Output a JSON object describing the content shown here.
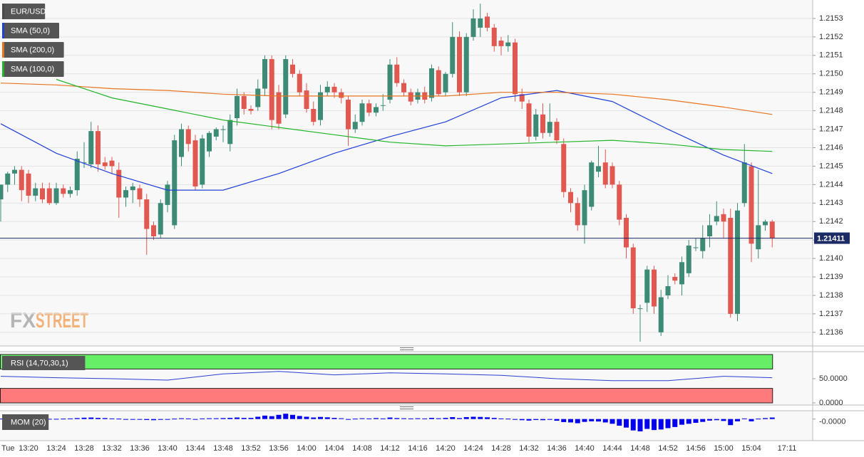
{
  "chart_data": [
    {
      "type": "candlestick",
      "title": "EUR/USD",
      "x": [
        "Tue",
        null,
        null,
        null,
        "13:20",
        null,
        null,
        null,
        "13:24",
        null,
        null,
        null,
        "13:28",
        null,
        null,
        null,
        "13:32",
        null,
        null,
        null,
        "13:36",
        null,
        null,
        null,
        "13:40",
        null,
        null,
        null,
        "13:44",
        null,
        null,
        null,
        "13:48",
        null,
        null,
        null,
        "13:52",
        null,
        null,
        null,
        "13:56",
        null,
        null,
        null,
        "14:00",
        null,
        null,
        null,
        "14:04",
        null,
        null,
        null,
        "14:08",
        null,
        null,
        null,
        "14:12",
        null,
        null,
        null,
        "14:16",
        null,
        null,
        null,
        "14:20",
        null,
        null,
        null,
        "14:24",
        null,
        null,
        null,
        "14:28",
        null,
        null,
        null,
        "14:32",
        null,
        null,
        null,
        "14:36",
        null,
        null,
        null,
        "14:40",
        null,
        null,
        null,
        "14:44",
        null,
        null,
        null,
        "14:48",
        null,
        null,
        null,
        "14:52",
        null,
        null,
        null,
        "14:56",
        null,
        null,
        null,
        "15:00",
        null,
        null,
        null,
        "15:04",
        null,
        null,
        null
      ],
      "open": [
        1.21432,
        1.2144,
        1.21446,
        1.21448,
        1.21446,
        1.21434,
        1.21438,
        1.21438,
        1.2143,
        1.21438,
        1.21435,
        1.21437,
        1.21452,
        1.21451,
        1.21469,
        1.21452,
        1.21453,
        1.21448,
        1.21433,
        1.21437,
        1.21438,
        1.21432,
        1.21418,
        1.21413,
        1.21429,
        1.21418,
        1.21455,
        1.2147,
        1.21464,
        1.2144,
        1.21458,
        1.21466,
        1.2147,
        1.21462,
        1.21476,
        1.21488,
        1.21481,
        1.21482,
        1.21492,
        1.21508,
        1.2149,
        1.21478,
        1.21505,
        1.215,
        1.21491,
        1.21481,
        1.21475,
        1.2149,
        1.21493,
        1.2149,
        1.21486,
        1.2147,
        1.21474,
        1.21484,
        1.21479,
        1.21483,
        1.21486,
        1.21505,
        1.21495,
        1.2149,
        1.21486,
        1.2149,
        1.21487,
        1.21502,
        1.2149,
        1.215,
        1.2152,
        1.2149,
        1.2152,
        1.21525,
        1.21531,
        1.21525,
        1.21518,
        1.21515,
        1.21517,
        1.21489,
        1.21484,
        1.21466,
        1.21478,
        1.21468,
        1.21474,
        1.21462,
        1.21436,
        1.2143,
        1.21418,
        1.21428,
        1.21447,
        1.21452,
        1.2145,
        1.2144,
        1.21422,
        1.21406,
        1.21373,
        1.21376,
        1.21394,
        1.2136,
        1.2138,
        1.2139,
        1.21386,
        1.21392,
        1.21406,
        1.21404,
        1.21412,
        1.2142,
        1.21424,
        1.21422,
        1.2137,
        1.2143,
        1.2145,
        1.21405,
        1.21418,
        1.2142
      ],
      "high": [
        1.2144,
        1.21447,
        1.2145,
        1.2145,
        1.21448,
        1.21441,
        1.21441,
        1.21441,
        1.21441,
        1.2144,
        1.21439,
        1.21458,
        1.21463,
        1.21474,
        1.21472,
        1.21455,
        1.21455,
        1.21452,
        1.21439,
        1.21441,
        1.2144,
        1.21435,
        1.2142,
        1.21432,
        1.21442,
        1.21467,
        1.21473,
        1.21472,
        1.21467,
        1.21467,
        1.21469,
        1.21471,
        1.21472,
        1.21478,
        1.21492,
        1.2149,
        1.21483,
        1.21497,
        1.2151,
        1.2151,
        1.21494,
        1.2151,
        1.21508,
        1.21502,
        1.21495,
        1.21485,
        1.21494,
        1.21496,
        1.21495,
        1.21492,
        1.21488,
        1.21478,
        1.21486,
        1.21486,
        1.21484,
        1.21489,
        1.21508,
        1.21509,
        1.21497,
        1.21492,
        1.21492,
        1.21493,
        1.21505,
        1.21504,
        1.21501,
        1.21528,
        1.21523,
        1.21522,
        1.21535,
        1.21538,
        1.21533,
        1.21527,
        1.2152,
        1.21521,
        1.21519,
        1.21492,
        1.21486,
        1.21481,
        1.21484,
        1.21484,
        1.21476,
        1.21465,
        1.21438,
        1.21433,
        1.2144,
        1.21453,
        1.21461,
        1.21459,
        1.21452,
        1.21442,
        1.21424,
        1.21408,
        1.21375,
        1.21396,
        1.21396,
        1.21383,
        1.21391,
        1.21392,
        1.21401,
        1.2141,
        1.21411,
        1.21418,
        1.21424,
        1.21431,
        1.21427,
        1.21427,
        1.2143,
        1.21462,
        1.21452,
        1.21448,
        1.21421,
        1.21421
      ],
      "low": [
        1.2142,
        1.21436,
        1.2144,
        1.21431,
        1.2143,
        1.21431,
        1.2143,
        1.21429,
        1.21429,
        1.21433,
        1.21433,
        1.21434,
        1.21449,
        1.21449,
        1.21447,
        1.21448,
        1.21446,
        1.21422,
        1.21428,
        1.2143,
        1.21428,
        1.21402,
        1.2141,
        1.21411,
        1.21425,
        1.21416,
        1.2145,
        1.21458,
        1.21437,
        1.21438,
        1.21455,
        1.21464,
        1.21463,
        1.21458,
        1.21472,
        1.21478,
        1.21478,
        1.2148,
        1.21488,
        1.2147,
        1.2147,
        1.21476,
        1.21498,
        1.21488,
        1.21479,
        1.21472,
        1.21472,
        1.21488,
        1.21487,
        1.21484,
        1.21461,
        1.21468,
        1.21472,
        1.21477,
        1.21477,
        1.2148,
        1.21484,
        1.21493,
        1.21488,
        1.21483,
        1.21484,
        1.21484,
        1.21485,
        1.21488,
        1.21488,
        1.21498,
        1.21488,
        1.21488,
        1.21518,
        1.2152,
        1.21523,
        1.21512,
        1.2151,
        1.21512,
        1.21485,
        1.21481,
        1.21463,
        1.21464,
        1.21465,
        1.21466,
        1.21462,
        1.21433,
        1.21425,
        1.21415,
        1.21408,
        1.21426,
        1.21444,
        1.21438,
        1.21438,
        1.21418,
        1.214,
        1.2137,
        1.21355,
        1.21371,
        1.2137,
        1.21358,
        1.21378,
        1.21386,
        1.2138,
        1.2139,
        1.21404,
        1.214,
        1.21406,
        1.21418,
        1.21411,
        1.21368,
        1.21366,
        1.21428,
        1.21398,
        1.214,
        1.21415,
        1.21406
      ],
      "close": [
        1.2144,
        1.21446,
        1.21448,
        1.21437,
        1.21434,
        1.21438,
        1.21432,
        1.2143,
        1.21438,
        1.21435,
        1.21437,
        1.21454,
        1.21452,
        1.21469,
        1.21451,
        1.2145,
        1.2145,
        1.21433,
        1.21437,
        1.21439,
        1.21432,
        1.21416,
        1.21412,
        1.2143,
        1.2144,
        1.21464,
        1.2147,
        1.21462,
        1.21439,
        1.21465,
        1.21468,
        1.2147,
        1.2147,
        1.21475,
        1.21488,
        1.21481,
        1.2148,
        1.21492,
        1.21508,
        1.21475,
        1.21473,
        1.21508,
        1.215,
        1.2149,
        1.21481,
        1.21474,
        1.2149,
        1.21493,
        1.2149,
        1.21487,
        1.2147,
        1.21474,
        1.21484,
        1.21479,
        1.21482,
        1.21483,
        1.21505,
        1.21495,
        1.2149,
        1.21485,
        1.2149,
        1.21486,
        1.21503,
        1.21489,
        1.215,
        1.2152,
        1.2149,
        1.2152,
        1.2153,
        1.2153,
        1.21525,
        1.21515,
        1.21515,
        1.21517,
        1.21489,
        1.21485,
        1.21466,
        1.21478,
        1.21468,
        1.21474,
        1.21464,
        1.21436,
        1.2143,
        1.21418,
        1.21437,
        1.21452,
        1.2145,
        1.2144,
        1.2144,
        1.21421,
        1.21406,
        1.21373,
        1.21373,
        1.21394,
        1.21374,
        1.21379,
        1.21385,
        1.21388,
        1.21398,
        1.21407,
        1.21406,
        1.21411,
        1.21418,
        1.21423,
        1.2142,
        1.2137,
        1.21426,
        1.21452,
        1.21408,
        1.21418,
        1.2142,
        1.21411
      ],
      "up_color": "#3d8b75",
      "down_color": "#e0584f",
      "series": [
        {
          "name": "SMA (50,0)",
          "color": "#2040d8",
          "x": [
            0,
            8,
            16,
            24,
            32,
            40,
            48,
            56,
            64,
            72,
            80,
            88,
            96,
            104,
            111
          ],
          "values": [
            1.21473,
            1.21457,
            1.21446,
            1.21437,
            1.21437,
            1.21446,
            1.21457,
            1.21466,
            1.21474,
            1.21487,
            1.21491,
            1.21485,
            1.2147,
            1.21456,
            1.21446
          ]
        },
        {
          "name": "SMA (200,0)",
          "color": "#e8741e",
          "x": [
            0,
            8,
            16,
            24,
            32,
            40,
            48,
            56,
            64,
            72,
            80,
            88,
            96,
            104,
            111
          ],
          "values": [
            1.21495,
            1.21494,
            1.21492,
            1.21491,
            1.21489,
            1.21488,
            1.21488,
            1.21488,
            1.21488,
            1.2149,
            1.2149,
            1.21489,
            1.21486,
            1.21482,
            1.21478
          ]
        },
        {
          "name": "SMA (100,0)",
          "color": "#22b52a",
          "x": [
            8,
            16,
            24,
            32,
            40,
            48,
            56,
            64,
            72,
            80,
            88,
            96,
            104,
            111
          ],
          "values": [
            1.21497,
            1.21487,
            1.21481,
            1.21475,
            1.21471,
            1.21467,
            1.21463,
            1.21461,
            1.21462,
            1.21463,
            1.21464,
            1.21462,
            1.21459,
            1.21458
          ]
        }
      ],
      "current_price": {
        "value": 1.21411,
        "label": "1.21411"
      },
      "cursor_time": "17:11",
      "ylim": [
        1.21353,
        1.2154
      ],
      "yticks": [
        1.2136,
        1.2137,
        1.2138,
        1.2139,
        {
          "value": 1.214,
          "label": "1.2140"
        },
        1.2141,
        1.2142,
        1.2143,
        1.2144,
        1.2145,
        1.2146,
        1.2147,
        1.2148,
        1.2149,
        {
          "value": 1.215,
          "label": "1.2150"
        },
        1.2151,
        1.2152,
        1.2153
      ],
      "grid": true
    },
    {
      "type": "line",
      "title": "RSI (14,70,30,1)",
      "series": [
        {
          "color": "#2a3fd0",
          "x": [
            0,
            8,
            16,
            24,
            32,
            40,
            48,
            56,
            64,
            72,
            80,
            88,
            96,
            104,
            111
          ],
          "values": [
            55,
            52,
            50,
            47,
            60,
            65,
            58,
            62,
            60,
            57,
            50,
            46,
            46,
            55,
            52
          ]
        }
      ],
      "bands": [
        {
          "range": [
            70,
            100
          ],
          "color": "#66ee66"
        },
        {
          "range": [
            0,
            30
          ],
          "color": "#ff7b7b"
        }
      ],
      "ylim": [
        0,
        100
      ],
      "yticks": [
        {
          "value": 50,
          "label": "50.0000"
        },
        {
          "value": 0,
          "label": "0.0000"
        }
      ]
    },
    {
      "type": "bar",
      "title": "MOM (20)",
      "color": "#0000ee",
      "values": [
        2e-05,
        2e-05,
        1e-05,
        2e-05,
        2e-05,
        1e-05,
        2e-05,
        1e-05,
        1e-05,
        2e-05,
        3e-05,
        5e-05,
        7e-05,
        8e-05,
        6e-05,
        5e-05,
        3e-05,
        2e-05,
        -1e-05,
        -2e-05,
        -3e-05,
        -5e-05,
        -6e-05,
        -4e-05,
        -2e-05,
        2e-05,
        4e-05,
        3e-05,
        -2e-05,
        3e-05,
        4e-05,
        4e-05,
        5e-05,
        6e-05,
        8e-05,
        6e-05,
        6e-05,
        0.00012,
        0.00018,
        0.00015,
        0.00022,
        0.00028,
        0.00022,
        0.00016,
        0.00012,
        8e-05,
        0.00011,
        9e-05,
        6e-05,
        4e-05,
        -1e-05,
        2e-05,
        4e-05,
        3e-05,
        5e-05,
        3e-05,
        8e-05,
        5e-05,
        4e-05,
        3e-05,
        4e-05,
        3e-05,
        6e-05,
        4e-05,
        6e-05,
        0.0001,
        5e-05,
        0.0001,
        0.00012,
        0.00011,
        9e-05,
        6e-05,
        3e-05,
        2e-05,
        -4e-05,
        -6e-05,
        -8e-05,
        -5e-05,
        -6e-05,
        -4e-05,
        -9e-05,
        -0.00016,
        -0.00018,
        -0.00022,
        -0.00015,
        -0.00012,
        -0.00013,
        -0.00018,
        -0.00025,
        -0.00035,
        -0.00045,
        -0.0006,
        -0.00065,
        -0.00052,
        -0.00058,
        -0.00055,
        -0.00048,
        -0.00042,
        -0.0003,
        -0.00025,
        -0.0002,
        -0.00015,
        -8e-05,
        -6e-05,
        -0.0001,
        -0.00032,
        -0.00012,
        3e-05,
        -0.00012,
        2e-05,
        5e-05,
        8e-05
      ],
      "ylim": [
        -0.0011,
        0.0004
      ],
      "yticks": [
        {
          "value": 0,
          "label": "-0.0000"
        }
      ]
    }
  ],
  "watermark": {
    "left": "FX",
    "right": "STREET"
  }
}
